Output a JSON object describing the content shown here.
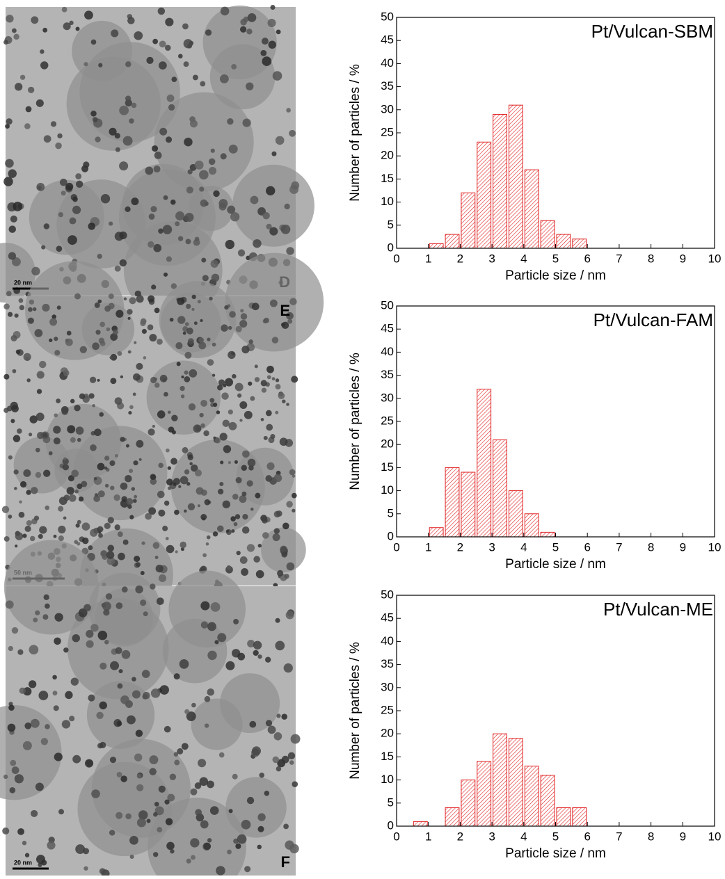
{
  "chart_data": [
    {
      "type": "histogram",
      "title": "Pt/Vulcan-SBM",
      "x_label": "Particle size / nm",
      "y_label": "Number of particles / %",
      "bins": [
        1,
        1.5,
        2,
        2.5,
        3,
        3.5,
        4,
        4.5,
        5,
        5.5,
        6
      ],
      "counts": [
        1,
        3,
        12,
        23,
        29,
        31,
        17,
        6,
        3,
        2
      ],
      "color": "#e02020",
      "xlim": [
        0,
        10
      ],
      "xticks": [
        0,
        1,
        2,
        3,
        4,
        5,
        6,
        7,
        8,
        9,
        10
      ],
      "ylim": [
        0,
        50
      ],
      "yticks": [
        0,
        5,
        10,
        15,
        20,
        25,
        30,
        35,
        40,
        45,
        50
      ]
    },
    {
      "type": "histogram",
      "title": "Pt/Vulcan-FAM",
      "x_label": "Particle size / nm",
      "y_label": "Number of particles / %",
      "bins": [
        1,
        1.5,
        2,
        2.5,
        3,
        3.5,
        4,
        4.5,
        5
      ],
      "counts": [
        2,
        15,
        14,
        32,
        21,
        10,
        5,
        1
      ],
      "color": "#e02020",
      "xlim": [
        0,
        10
      ],
      "xticks": [
        0,
        1,
        2,
        3,
        4,
        5,
        6,
        7,
        8,
        9,
        10
      ],
      "ylim": [
        0,
        50
      ],
      "yticks": [
        0,
        5,
        10,
        15,
        20,
        25,
        30,
        35,
        40,
        45,
        50
      ]
    },
    {
      "type": "histogram",
      "title": "Pt/Vulcan-ME",
      "x_label": "Particle size / nm",
      "y_label": "Number of particles / %",
      "bins": [
        0.5,
        1,
        1.5,
        2,
        2.5,
        3,
        3.5,
        4,
        4.5,
        5,
        5.5,
        6
      ],
      "counts": [
        1,
        0,
        4,
        10,
        14,
        20,
        19,
        13,
        11,
        4,
        4
      ],
      "color": "#e02020",
      "xlim": [
        0,
        10
      ],
      "xticks": [
        0,
        1,
        2,
        3,
        4,
        5,
        6,
        7,
        8,
        9,
        10
      ],
      "ylim": [
        0,
        50
      ],
      "yticks": [
        0,
        5,
        10,
        15,
        20,
        25,
        30,
        35,
        40,
        45,
        50
      ]
    }
  ],
  "images": [
    {
      "panel": "D",
      "scale_bar": "20 nm"
    },
    {
      "panel": "E",
      "scale_bar": "50 nm"
    },
    {
      "panel": "F",
      "scale_bar": "20 nm"
    }
  ]
}
